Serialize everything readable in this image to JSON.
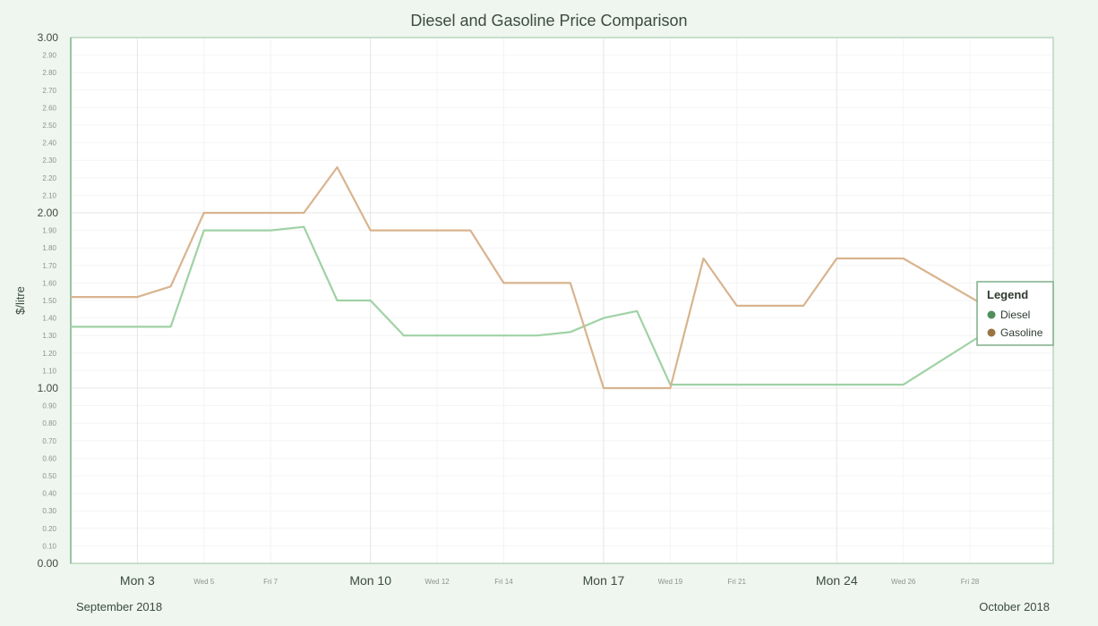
{
  "chart_data": {
    "type": "line",
    "title": "Diesel and Gasoline Price Comparison",
    "ylabel": "$/litre",
    "xlabel": "",
    "ylim": [
      0,
      3.0
    ],
    "y_major_ticks": [
      "0.00",
      "1.00",
      "2.00",
      "3.00"
    ],
    "y_minor_ticks": [
      "0.10",
      "0.20",
      "0.30",
      "0.40",
      "0.50",
      "0.60",
      "0.70",
      "0.80",
      "0.90",
      "1.10",
      "1.20",
      "1.30",
      "1.40",
      "1.50",
      "1.60",
      "1.70",
      "1.80",
      "1.90",
      "2.10",
      "2.20",
      "2.30",
      "2.40",
      "2.50",
      "2.60",
      "2.70",
      "2.80",
      "2.90"
    ],
    "x_range": [
      "2018-09-01",
      "2018-09-30"
    ],
    "x_major_ticks": [
      {
        "date": "2018-09-03",
        "label": "Mon 3"
      },
      {
        "date": "2018-09-10",
        "label": "Mon 10"
      },
      {
        "date": "2018-09-17",
        "label": "Mon 17"
      },
      {
        "date": "2018-09-24",
        "label": "Mon 24"
      }
    ],
    "x_minor_ticks": [
      {
        "date": "2018-09-05",
        "label": "Wed 5"
      },
      {
        "date": "2018-09-07",
        "label": "Fri 7"
      },
      {
        "date": "2018-09-12",
        "label": "Wed 12"
      },
      {
        "date": "2018-09-14",
        "label": "Fri 14"
      },
      {
        "date": "2018-09-19",
        "label": "Wed 19"
      },
      {
        "date": "2018-09-21",
        "label": "Fri 21"
      },
      {
        "date": "2018-09-26",
        "label": "Wed 26"
      },
      {
        "date": "2018-09-28",
        "label": "Fri 28"
      }
    ],
    "month_labels": [
      {
        "label": "September 2018",
        "position": "left"
      },
      {
        "label": "October 2018",
        "position": "right"
      }
    ],
    "grid": true,
    "legend": {
      "title": "Legend",
      "placement": "right"
    },
    "series": [
      {
        "name": "Diesel",
        "color": "#9fd2a5",
        "marker_color": "#4f8f5d",
        "x": [
          "2018-09-01",
          "2018-09-02",
          "2018-09-03",
          "2018-09-04",
          "2018-09-05",
          "2018-09-06",
          "2018-09-07",
          "2018-09-08",
          "2018-09-09",
          "2018-09-10",
          "2018-09-11",
          "2018-09-12",
          "2018-09-13",
          "2018-09-14",
          "2018-09-15",
          "2018-09-16",
          "2018-09-17",
          "2018-09-18",
          "2018-09-19",
          "2018-09-20",
          "2018-09-21",
          "2018-09-22",
          "2018-09-23",
          "2018-09-24",
          "2018-09-25",
          "2018-09-26",
          "2018-09-27",
          "2018-09-28",
          "2018-09-29",
          "2018-09-30"
        ],
        "values": [
          1.35,
          1.35,
          1.35,
          1.35,
          1.9,
          1.9,
          1.9,
          1.92,
          1.5,
          1.5,
          1.3,
          1.3,
          1.3,
          1.3,
          1.3,
          1.32,
          1.4,
          1.44,
          1.02,
          1.02,
          1.02,
          1.02,
          1.02,
          1.02,
          1.02,
          1.02,
          1.14,
          1.26,
          1.38,
          1.5
        ]
      },
      {
        "name": "Gasoline",
        "color": "#d8b48e",
        "marker_color": "#9a7443",
        "x": [
          "2018-09-01",
          "2018-09-02",
          "2018-09-03",
          "2018-09-04",
          "2018-09-05",
          "2018-09-06",
          "2018-09-07",
          "2018-09-08",
          "2018-09-09",
          "2018-09-10",
          "2018-09-11",
          "2018-09-12",
          "2018-09-13",
          "2018-09-14",
          "2018-09-15",
          "2018-09-16",
          "2018-09-17",
          "2018-09-18",
          "2018-09-19",
          "2018-09-20",
          "2018-09-21",
          "2018-09-22",
          "2018-09-23",
          "2018-09-24",
          "2018-09-25",
          "2018-09-26",
          "2018-09-27",
          "2018-09-28",
          "2018-09-29",
          "2018-09-30"
        ],
        "values": [
          1.52,
          1.52,
          1.52,
          1.58,
          2.0,
          2.0,
          2.0,
          2.0,
          2.26,
          1.9,
          1.9,
          1.9,
          1.9,
          1.6,
          1.6,
          1.6,
          1.0,
          1.0,
          1.0,
          1.74,
          1.47,
          1.47,
          1.47,
          1.74,
          1.74,
          1.74,
          1.63,
          1.52,
          1.41,
          1.3
        ]
      }
    ]
  }
}
